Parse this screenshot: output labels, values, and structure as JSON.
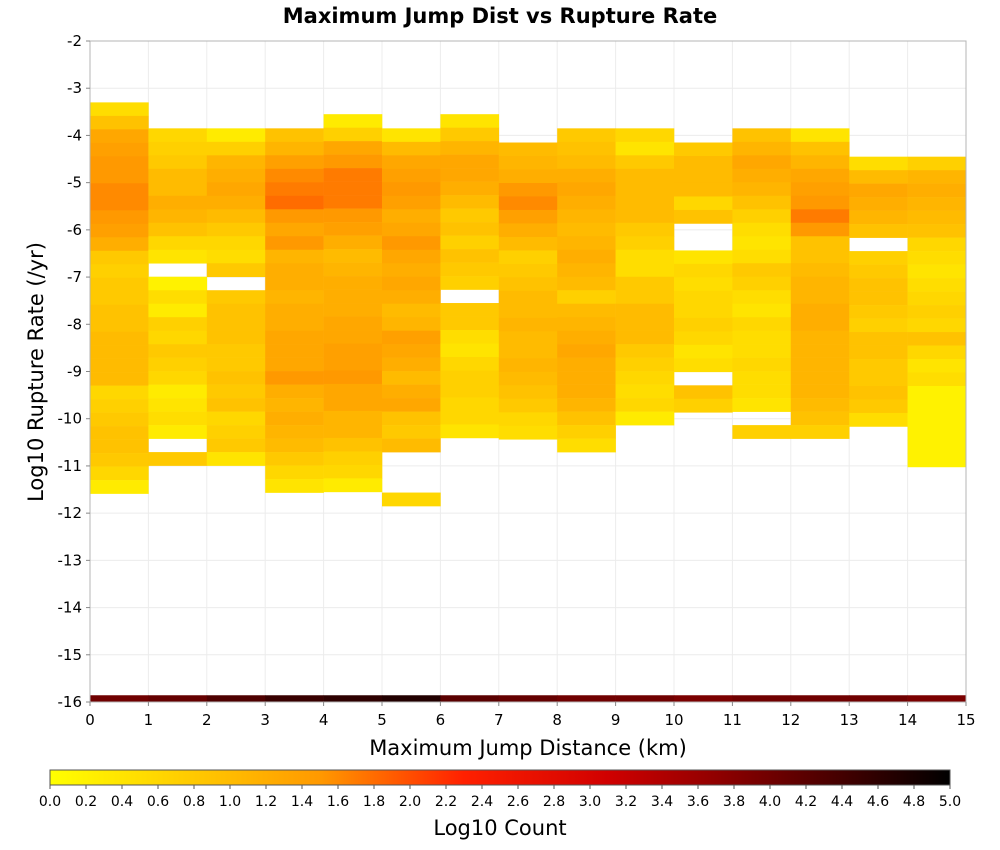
{
  "chart_data": {
    "type": "heatmap",
    "title": "Maximum Jump Dist vs Rupture Rate",
    "xlabel": "Maximum Jump Distance (km)",
    "ylabel": "Log10 Rupture Rate (/yr)",
    "xlim": [
      0,
      15
    ],
    "ylim": [
      -16,
      -2
    ],
    "x_ticks": [
      "0",
      "1",
      "2",
      "3",
      "4",
      "5",
      "6",
      "7",
      "8",
      "9",
      "10",
      "11",
      "12",
      "13",
      "14",
      "15"
    ],
    "y_ticks": [
      "-16",
      "-15",
      "-14",
      "-13",
      "-12",
      "-11",
      "-10",
      "-9",
      "-8",
      "-7",
      "-6",
      "-5",
      "-4",
      "-3",
      "-2"
    ],
    "bin_width_x": 1,
    "bin_height_y": 0.2857,
    "grid": true,
    "colorbar": {
      "label": "Log10 Count",
      "min": 0.0,
      "max": 5.0,
      "ticks": [
        "0.0",
        "0.2",
        "0.4",
        "0.6",
        "0.8",
        "1.0",
        "1.2",
        "1.4",
        "1.6",
        "1.8",
        "2.0",
        "2.2",
        "2.4",
        "2.6",
        "2.8",
        "3.0",
        "3.2",
        "3.4",
        "3.6",
        "3.8",
        "4.0",
        "4.2",
        "4.4",
        "4.6",
        "4.8",
        "5.0"
      ]
    },
    "bottom_row": {
      "y_bin": -16,
      "values": [
        4.0,
        4.1,
        4.3,
        4.5,
        4.6,
        4.7,
        4.2,
        4.1,
        4.0,
        4.0,
        3.9,
        4.0,
        4.0,
        4.0,
        3.9
      ]
    },
    "columns": [
      {
        "x": 0.5,
        "y_top": -3.3,
        "values": [
          0.5,
          0.9,
          1.3,
          1.4,
          1.5,
          1.5,
          1.6,
          1.6,
          1.5,
          1.4,
          1.2,
          0.8,
          0.7,
          0.8,
          0.8,
          0.9,
          0.9,
          1.0,
          1.0,
          1.0,
          1.0,
          0.6,
          0.7,
          0.8,
          0.9,
          0.9,
          0.8,
          0.6,
          0.3
        ]
      },
      {
        "x": 1.5,
        "y_top": -3.85,
        "values": [
          0.6,
          0.7,
          0.8,
          1.0,
          1.0,
          1.2,
          1.1,
          0.9,
          0.6,
          0.4,
          null,
          0.2,
          0.5,
          0.3,
          0.7,
          0.6,
          0.8,
          0.7,
          0.6,
          0.3,
          0.4,
          0.5,
          0.3,
          null,
          0.8
        ]
      },
      {
        "x": 2.5,
        "y_top": -3.85,
        "values": [
          0.3,
          0.7,
          1.1,
          1.2,
          1.3,
          1.2,
          1.0,
          0.8,
          0.6,
          0.5,
          0.8,
          null,
          0.8,
          0.9,
          0.9,
          0.9,
          0.8,
          0.8,
          0.9,
          0.8,
          0.9,
          0.6,
          0.7,
          0.8,
          0.4
        ]
      },
      {
        "x": 3.5,
        "y_top": -3.85,
        "values": [
          0.9,
          1.1,
          1.4,
          1.6,
          1.7,
          1.8,
          1.5,
          1.3,
          1.5,
          1.1,
          1.2,
          1.2,
          1.1,
          1.2,
          1.2,
          1.3,
          1.3,
          1.3,
          1.5,
          1.2,
          1.1,
          1.2,
          1.1,
          1.0,
          0.8,
          0.6,
          0.4
        ]
      },
      {
        "x": 4.5,
        "y_top": -3.55,
        "values": [
          0.3,
          0.7,
          1.3,
          1.5,
          1.7,
          1.7,
          1.7,
          1.5,
          1.4,
          1.2,
          1.0,
          1.1,
          1.2,
          1.2,
          1.2,
          1.3,
          1.3,
          1.4,
          1.4,
          1.5,
          1.3,
          1.3,
          1.1,
          1.1,
          0.9,
          0.7,
          0.6,
          0.3
        ]
      },
      {
        "x": 5.5,
        "y_top": -3.85,
        "values": [
          0.4,
          1.0,
          1.3,
          1.4,
          1.5,
          1.4,
          1.2,
          1.3,
          1.5,
          1.3,
          1.2,
          1.3,
          1.2,
          1.0,
          1.1,
          1.4,
          1.3,
          1.2,
          1.0,
          1.2,
          1.3,
          0.9,
          0.8,
          1.0,
          null,
          null,
          null,
          0.6
        ]
      },
      {
        "x": 6.5,
        "y_top": -3.55,
        "values": [
          0.4,
          0.8,
          1.1,
          1.3,
          1.3,
          1.2,
          1.0,
          0.8,
          0.9,
          0.7,
          0.9,
          0.8,
          0.7,
          null,
          0.8,
          0.8,
          0.5,
          0.4,
          0.6,
          0.7,
          0.7,
          0.6,
          0.6,
          0.4
        ]
      },
      {
        "x": 7.5,
        "y_top": -4.15,
        "values": [
          1.0,
          1.1,
          1.2,
          1.5,
          1.6,
          1.4,
          1.2,
          1.0,
          0.7,
          0.8,
          0.9,
          1.0,
          1.0,
          1.1,
          1.0,
          1.0,
          1.1,
          1.0,
          0.9,
          0.8,
          0.6,
          0.5
        ]
      },
      {
        "x": 8.5,
        "y_top": -3.85,
        "values": [
          0.8,
          0.9,
          1.0,
          1.2,
          1.3,
          1.2,
          1.1,
          1.0,
          1.1,
          1.2,
          1.1,
          1.0,
          0.7,
          1.0,
          1.1,
          1.2,
          1.3,
          1.2,
          1.2,
          1.2,
          1.1,
          0.9,
          0.7,
          0.5
        ]
      },
      {
        "x": 9.5,
        "y_top": -3.85,
        "values": [
          0.6,
          0.4,
          0.8,
          1.0,
          1.0,
          1.0,
          1.0,
          0.8,
          0.7,
          0.5,
          0.5,
          0.8,
          0.8,
          1.0,
          1.0,
          1.0,
          0.8,
          0.7,
          0.6,
          0.5,
          0.6,
          0.3
        ]
      },
      {
        "x": 10.5,
        "y_top": -4.15,
        "values": [
          0.8,
          1.0,
          1.0,
          1.0,
          0.6,
          0.9,
          null,
          null,
          0.4,
          0.6,
          0.5,
          0.6,
          0.6,
          0.7,
          0.6,
          0.4,
          0.5,
          null,
          0.9,
          0.7
        ]
      },
      {
        "x": 11.5,
        "y_top": -3.85,
        "values": [
          0.9,
          1.1,
          1.3,
          1.2,
          1.1,
          0.9,
          0.7,
          0.5,
          0.4,
          0.5,
          0.8,
          0.7,
          0.5,
          0.4,
          0.6,
          0.5,
          0.5,
          0.6,
          0.5,
          0.5,
          0.4,
          null,
          0.7
        ]
      },
      {
        "x": 12.5,
        "y_top": -3.85,
        "values": [
          0.4,
          0.9,
          1.1,
          1.3,
          1.4,
          1.5,
          1.7,
          1.5,
          0.9,
          0.9,
          1.0,
          1.1,
          1.1,
          1.2,
          1.2,
          1.1,
          1.1,
          1.1,
          1.1,
          1.1,
          1.0,
          0.9,
          0.7
        ]
      },
      {
        "x": 13.5,
        "y_top": -4.45,
        "values": [
          0.5,
          1.0,
          1.3,
          1.2,
          1.1,
          0.9,
          null,
          0.7,
          0.8,
          0.9,
          0.9,
          0.8,
          0.7,
          0.9,
          0.9,
          0.8,
          0.8,
          0.9,
          0.8,
          0.5
        ]
      },
      {
        "x": 14.5,
        "y_top": -4.45,
        "values": [
          0.7,
          1.1,
          1.2,
          1.1,
          1.0,
          0.9,
          0.6,
          0.5,
          0.4,
          0.5,
          0.6,
          0.7,
          0.6,
          0.9,
          0.6,
          0.4,
          0.5,
          0.2,
          0.2,
          0.2,
          0.2,
          0.2,
          0.2
        ]
      }
    ]
  }
}
